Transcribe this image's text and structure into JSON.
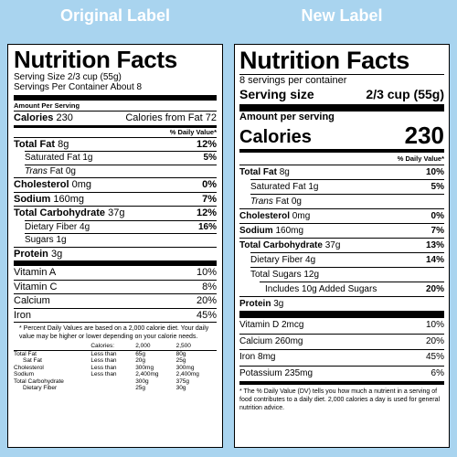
{
  "headings": {
    "left": "Original Label",
    "right": "New Label"
  },
  "old": {
    "title": "Nutrition Facts",
    "serving_size": "Serving Size 2/3 cup (55g)",
    "servings_per": "Servings Per Container About 8",
    "amount_per": "Amount Per Serving",
    "calories_label": "Calories",
    "calories_value": "230",
    "cal_fat": "Calories from Fat 72",
    "dv_header": "% Daily Value*",
    "nutrients": [
      {
        "label": "Total Fat",
        "amount": "8g",
        "dv": "12%",
        "bold": true
      },
      {
        "label": "Saturated Fat",
        "amount": "1g",
        "dv": "5%",
        "bold": false
      },
      {
        "label": "Trans",
        "amount": "Fat 0g",
        "dv": "",
        "bold": false
      },
      {
        "label": "Cholesterol",
        "amount": "0mg",
        "dv": "0%",
        "bold": true
      },
      {
        "label": "Sodium",
        "amount": "160mg",
        "dv": "7%",
        "bold": true
      },
      {
        "label": "Total Carbohydrate",
        "amount": "37g",
        "dv": "12%",
        "bold": true
      },
      {
        "label": "Dietary Fiber",
        "amount": "4g",
        "dv": "16%",
        "bold": false
      },
      {
        "label": "Sugars",
        "amount": "1g",
        "dv": "",
        "bold": false
      },
      {
        "label": "Protein",
        "amount": "3g",
        "dv": "",
        "bold": true
      }
    ],
    "vitamins": [
      {
        "label": "Vitamin A",
        "dv": "10%"
      },
      {
        "label": "Vitamin C",
        "dv": "8%"
      },
      {
        "label": "Calcium",
        "dv": "20%"
      },
      {
        "label": "Iron",
        "dv": "45%"
      }
    ],
    "footnote": "* Percent Daily Values are based on a 2,000 calorie diet. Your daily value may be higher or lower depending on your calorie needs.",
    "table_header": [
      "Calories:",
      "2,000",
      "2,500"
    ],
    "table_rows": [
      [
        "Total Fat",
        "Less than",
        "65g",
        "80g"
      ],
      [
        "Sat Fat",
        "Less than",
        "20g",
        "25g"
      ],
      [
        "Cholesterol",
        "Less than",
        "300mg",
        "300mg"
      ],
      [
        "Sodium",
        "Less than",
        "2,400mg",
        "2,400mg"
      ],
      [
        "Total Carbohydrate",
        "",
        "300g",
        "375g"
      ],
      [
        "Dietary Fiber",
        "",
        "25g",
        "30g"
      ]
    ]
  },
  "new": {
    "title": "Nutrition Facts",
    "servings_per": "8 servings per container",
    "serving_size_label": "Serving size",
    "serving_size_value": "2/3 cup (55g)",
    "amount_per": "Amount per serving",
    "calories_label": "Calories",
    "calories_value": "230",
    "dv_header": "% Daily Value*",
    "nutrients": [
      {
        "label": "Total Fat",
        "amount": "8g",
        "dv": "10%"
      },
      {
        "label": "Saturated Fat",
        "amount": "1g",
        "dv": "5%"
      },
      {
        "label": "Trans",
        "amount": "Fat 0g",
        "dv": ""
      },
      {
        "label": "Cholesterol",
        "amount": "0mg",
        "dv": "0%"
      },
      {
        "label": "Sodium",
        "amount": "160mg",
        "dv": "7%"
      },
      {
        "label": "Total Carbohydrate",
        "amount": "37g",
        "dv": "13%"
      },
      {
        "label": "Dietary Fiber",
        "amount": "4g",
        "dv": "14%"
      },
      {
        "label": "Total Sugars",
        "amount": "12g",
        "dv": ""
      },
      {
        "label": "Includes 10g Added Sugars",
        "amount": "",
        "dv": "20%"
      },
      {
        "label": "Protein",
        "amount": "3g",
        "dv": ""
      }
    ],
    "vitamins": [
      {
        "label": "Vitamin D 2mcg",
        "dv": "10%"
      },
      {
        "label": "Calcium 260mg",
        "dv": "20%"
      },
      {
        "label": "Iron 8mg",
        "dv": "45%"
      },
      {
        "label": "Potassium 235mg",
        "dv": "6%"
      }
    ],
    "footnote": "* The % Daily Value (DV) tells you how much a nutrient in a serving of food contributes to a daily diet. 2,000 calories a day is used for general nutrition advice."
  }
}
